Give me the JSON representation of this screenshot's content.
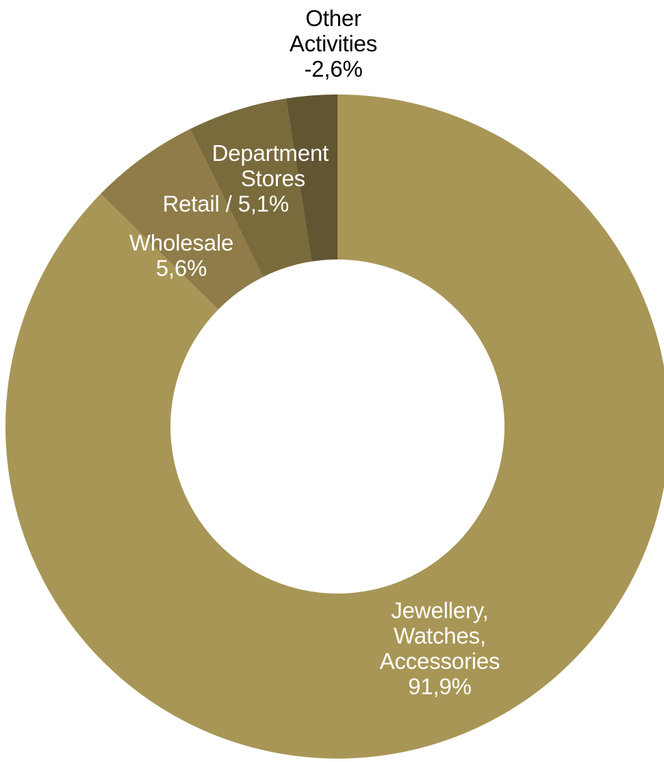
{
  "chart_data": {
    "type": "pie",
    "variant": "donut",
    "title": "",
    "slices": [
      {
        "name": "Jewellery, Watches, Accessories",
        "label_lines": [
          "Jewellery,",
          "Watches,",
          "Accessories"
        ],
        "value_label": "91,9%",
        "value": 91.9,
        "color": "#a89656"
      },
      {
        "name": "Wholesale",
        "label_lines": [
          "Wholesale"
        ],
        "value_label": "5,6%",
        "value": 5.6,
        "color": "#8f7c48"
      },
      {
        "name": "Retail / Department Stores",
        "label_lines": [
          "Department",
          "Stores",
          "Retail / 5,1%"
        ],
        "value_label": "",
        "value": 5.1,
        "color": "#7a6b3c"
      },
      {
        "name": "Other Activities",
        "label_lines": [
          "Other",
          "Activities"
        ],
        "value_label": "-2,6%",
        "value": -2.6,
        "color": "#615532"
      }
    ],
    "legend": "none",
    "label_placement": "data labels on slices"
  }
}
